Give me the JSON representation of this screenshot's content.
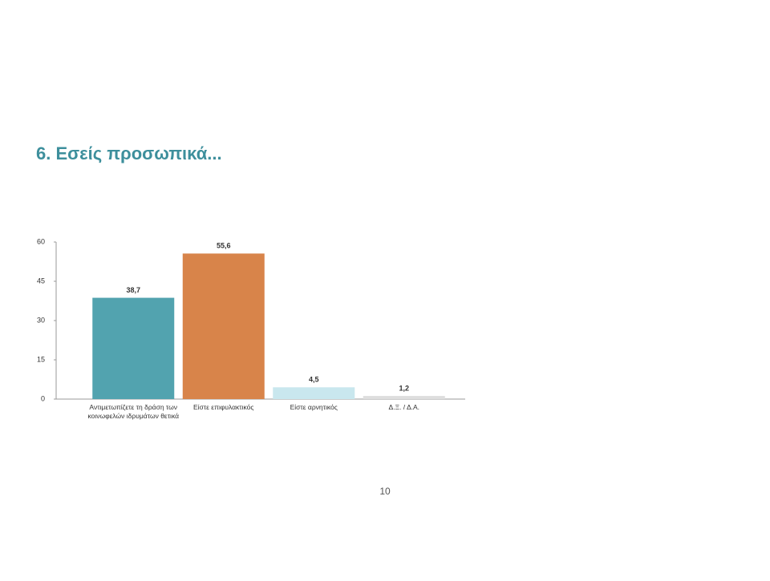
{
  "chart_data": {
    "type": "bar",
    "title": "6. Εσείς προσωπικά...",
    "categories": [
      "Αντιμετωπίζετε τη δράση των κοινωφελών ιδρυμάτων θετικά",
      "Είστε επιφυλακτικός",
      "Είστε αρνητικός",
      "Δ.Ξ. / Δ.Α."
    ],
    "values": [
      38.7,
      55.6,
      4.5,
      1.2
    ],
    "value_labels": [
      "38,7",
      "55,6",
      "4,5",
      "1,2"
    ],
    "colors": [
      "#52a3af",
      "#d8844a",
      "#c9e7ee",
      "#dedede"
    ],
    "ylim": [
      0,
      60
    ],
    "yticks": [
      0,
      15,
      30,
      45,
      60
    ],
    "grid": false
  },
  "page_number": "10"
}
